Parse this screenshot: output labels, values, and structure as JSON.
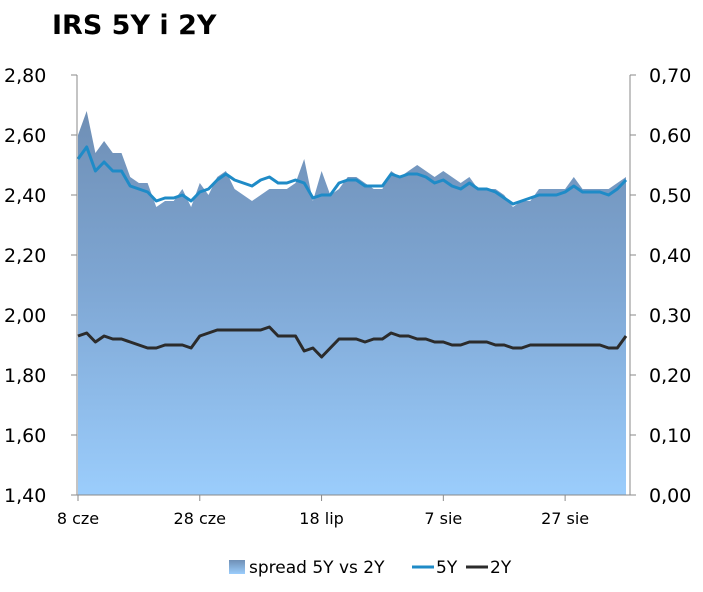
{
  "chart_data": {
    "type": "line",
    "title": "IRS 5Y i 2Y",
    "x_tick_labels": [
      "8 cze",
      "28 cze",
      "18 lip",
      "7 sie",
      "27 sie"
    ],
    "y_left_ticks": [
      "1,40",
      "1,60",
      "1,80",
      "2,00",
      "2,20",
      "2,40",
      "2,60",
      "2,80"
    ],
    "y_right_ticks": [
      "0,00",
      "0,10",
      "0,20",
      "0,30",
      "0,40",
      "0,50",
      "0,60",
      "0,70"
    ],
    "ylim_left": [
      1.4,
      2.8
    ],
    "ylim_right": [
      0.0,
      0.7
    ],
    "grid": false,
    "legend_position": "bottom",
    "series": [
      {
        "name": "spread 5Y vs 2Y",
        "axis": "right",
        "kind": "area",
        "values": [
          0.6,
          0.64,
          0.57,
          0.59,
          0.57,
          0.57,
          0.53,
          0.52,
          0.52,
          0.48,
          0.49,
          0.49,
          0.51,
          0.48,
          0.52,
          0.5,
          0.53,
          0.54,
          0.51,
          0.5,
          0.49,
          0.5,
          0.51,
          0.51,
          0.51,
          0.52,
          0.56,
          0.49,
          0.54,
          0.5,
          0.51,
          0.53,
          0.53,
          0.52,
          0.51,
          0.51,
          0.54,
          0.53,
          0.54,
          0.55,
          0.54,
          0.53,
          0.54,
          0.53,
          0.52,
          0.53,
          0.51,
          0.51,
          0.51,
          0.5,
          0.48,
          0.49,
          0.49,
          0.51,
          0.51,
          0.51,
          0.51,
          0.53,
          0.51,
          0.51,
          0.51,
          0.51,
          0.52,
          0.53
        ]
      },
      {
        "name": "5Y",
        "axis": "left",
        "kind": "line",
        "color": "#1f8bc7",
        "values": [
          2.52,
          2.56,
          2.48,
          2.51,
          2.48,
          2.48,
          2.43,
          2.42,
          2.41,
          2.38,
          2.39,
          2.39,
          2.4,
          2.38,
          2.41,
          2.42,
          2.45,
          2.47,
          2.45,
          2.44,
          2.43,
          2.45,
          2.46,
          2.44,
          2.44,
          2.45,
          2.44,
          2.39,
          2.4,
          2.4,
          2.44,
          2.45,
          2.45,
          2.43,
          2.43,
          2.43,
          2.47,
          2.46,
          2.47,
          2.47,
          2.46,
          2.44,
          2.45,
          2.43,
          2.42,
          2.44,
          2.42,
          2.42,
          2.41,
          2.39,
          2.37,
          2.38,
          2.39,
          2.4,
          2.4,
          2.4,
          2.41,
          2.43,
          2.41,
          2.41,
          2.41,
          2.4,
          2.42,
          2.45
        ]
      },
      {
        "name": "2Y",
        "axis": "left",
        "kind": "line",
        "color": "#2b2b2b",
        "values": [
          1.93,
          1.94,
          1.91,
          1.93,
          1.92,
          1.92,
          1.91,
          1.9,
          1.89,
          1.89,
          1.9,
          1.9,
          1.9,
          1.89,
          1.93,
          1.94,
          1.95,
          1.95,
          1.95,
          1.95,
          1.95,
          1.95,
          1.96,
          1.93,
          1.93,
          1.93,
          1.88,
          1.89,
          1.86,
          1.89,
          1.92,
          1.92,
          1.92,
          1.91,
          1.92,
          1.92,
          1.94,
          1.93,
          1.93,
          1.92,
          1.92,
          1.91,
          1.91,
          1.9,
          1.9,
          1.91,
          1.91,
          1.91,
          1.9,
          1.9,
          1.89,
          1.89,
          1.9,
          1.9,
          1.9,
          1.9,
          1.9,
          1.9,
          1.9,
          1.9,
          1.9,
          1.89,
          1.89,
          1.93
        ]
      }
    ]
  }
}
